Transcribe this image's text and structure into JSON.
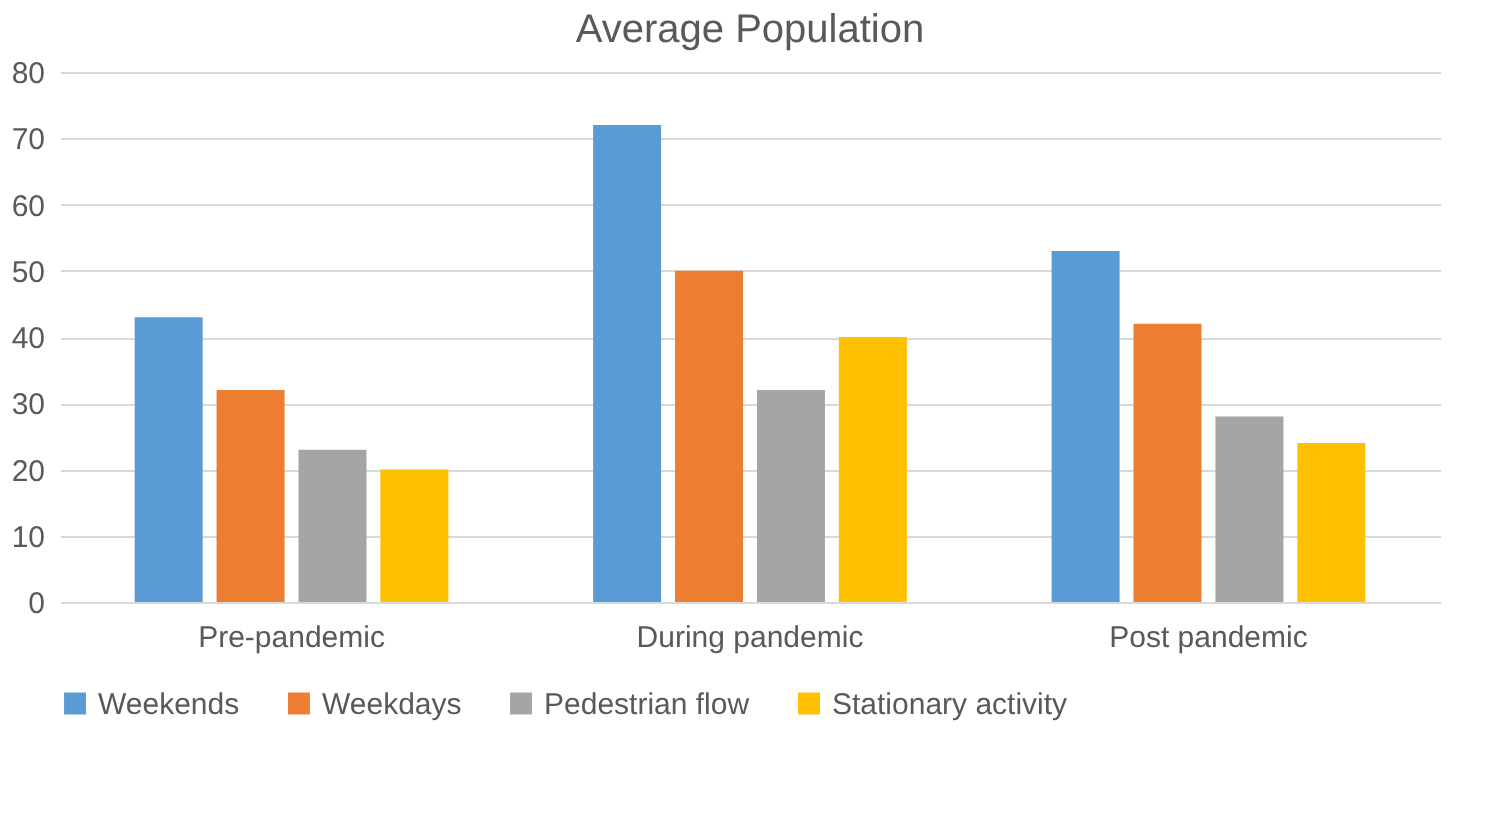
{
  "chart_data": {
    "type": "bar",
    "title": "Average Population",
    "categories": [
      "Pre-pandemic",
      "During pandemic",
      "Post pandemic"
    ],
    "series": [
      {
        "name": "Weekends",
        "color": "#5b9bd5",
        "values": [
          43,
          72,
          53
        ]
      },
      {
        "name": "Weekdays",
        "color": "#ed7d31",
        "values": [
          32,
          50,
          42
        ]
      },
      {
        "name": "Pedestrian flow",
        "color": "#a5a5a5",
        "values": [
          23,
          32,
          28
        ]
      },
      {
        "name": "Stationary activity",
        "color": "#ffc000",
        "values": [
          20,
          40,
          24
        ]
      }
    ],
    "ylim": [
      0,
      80
    ],
    "yticks": [
      0,
      10,
      20,
      30,
      40,
      50,
      60,
      70,
      80
    ],
    "grid": "y",
    "legend": "bottom"
  }
}
